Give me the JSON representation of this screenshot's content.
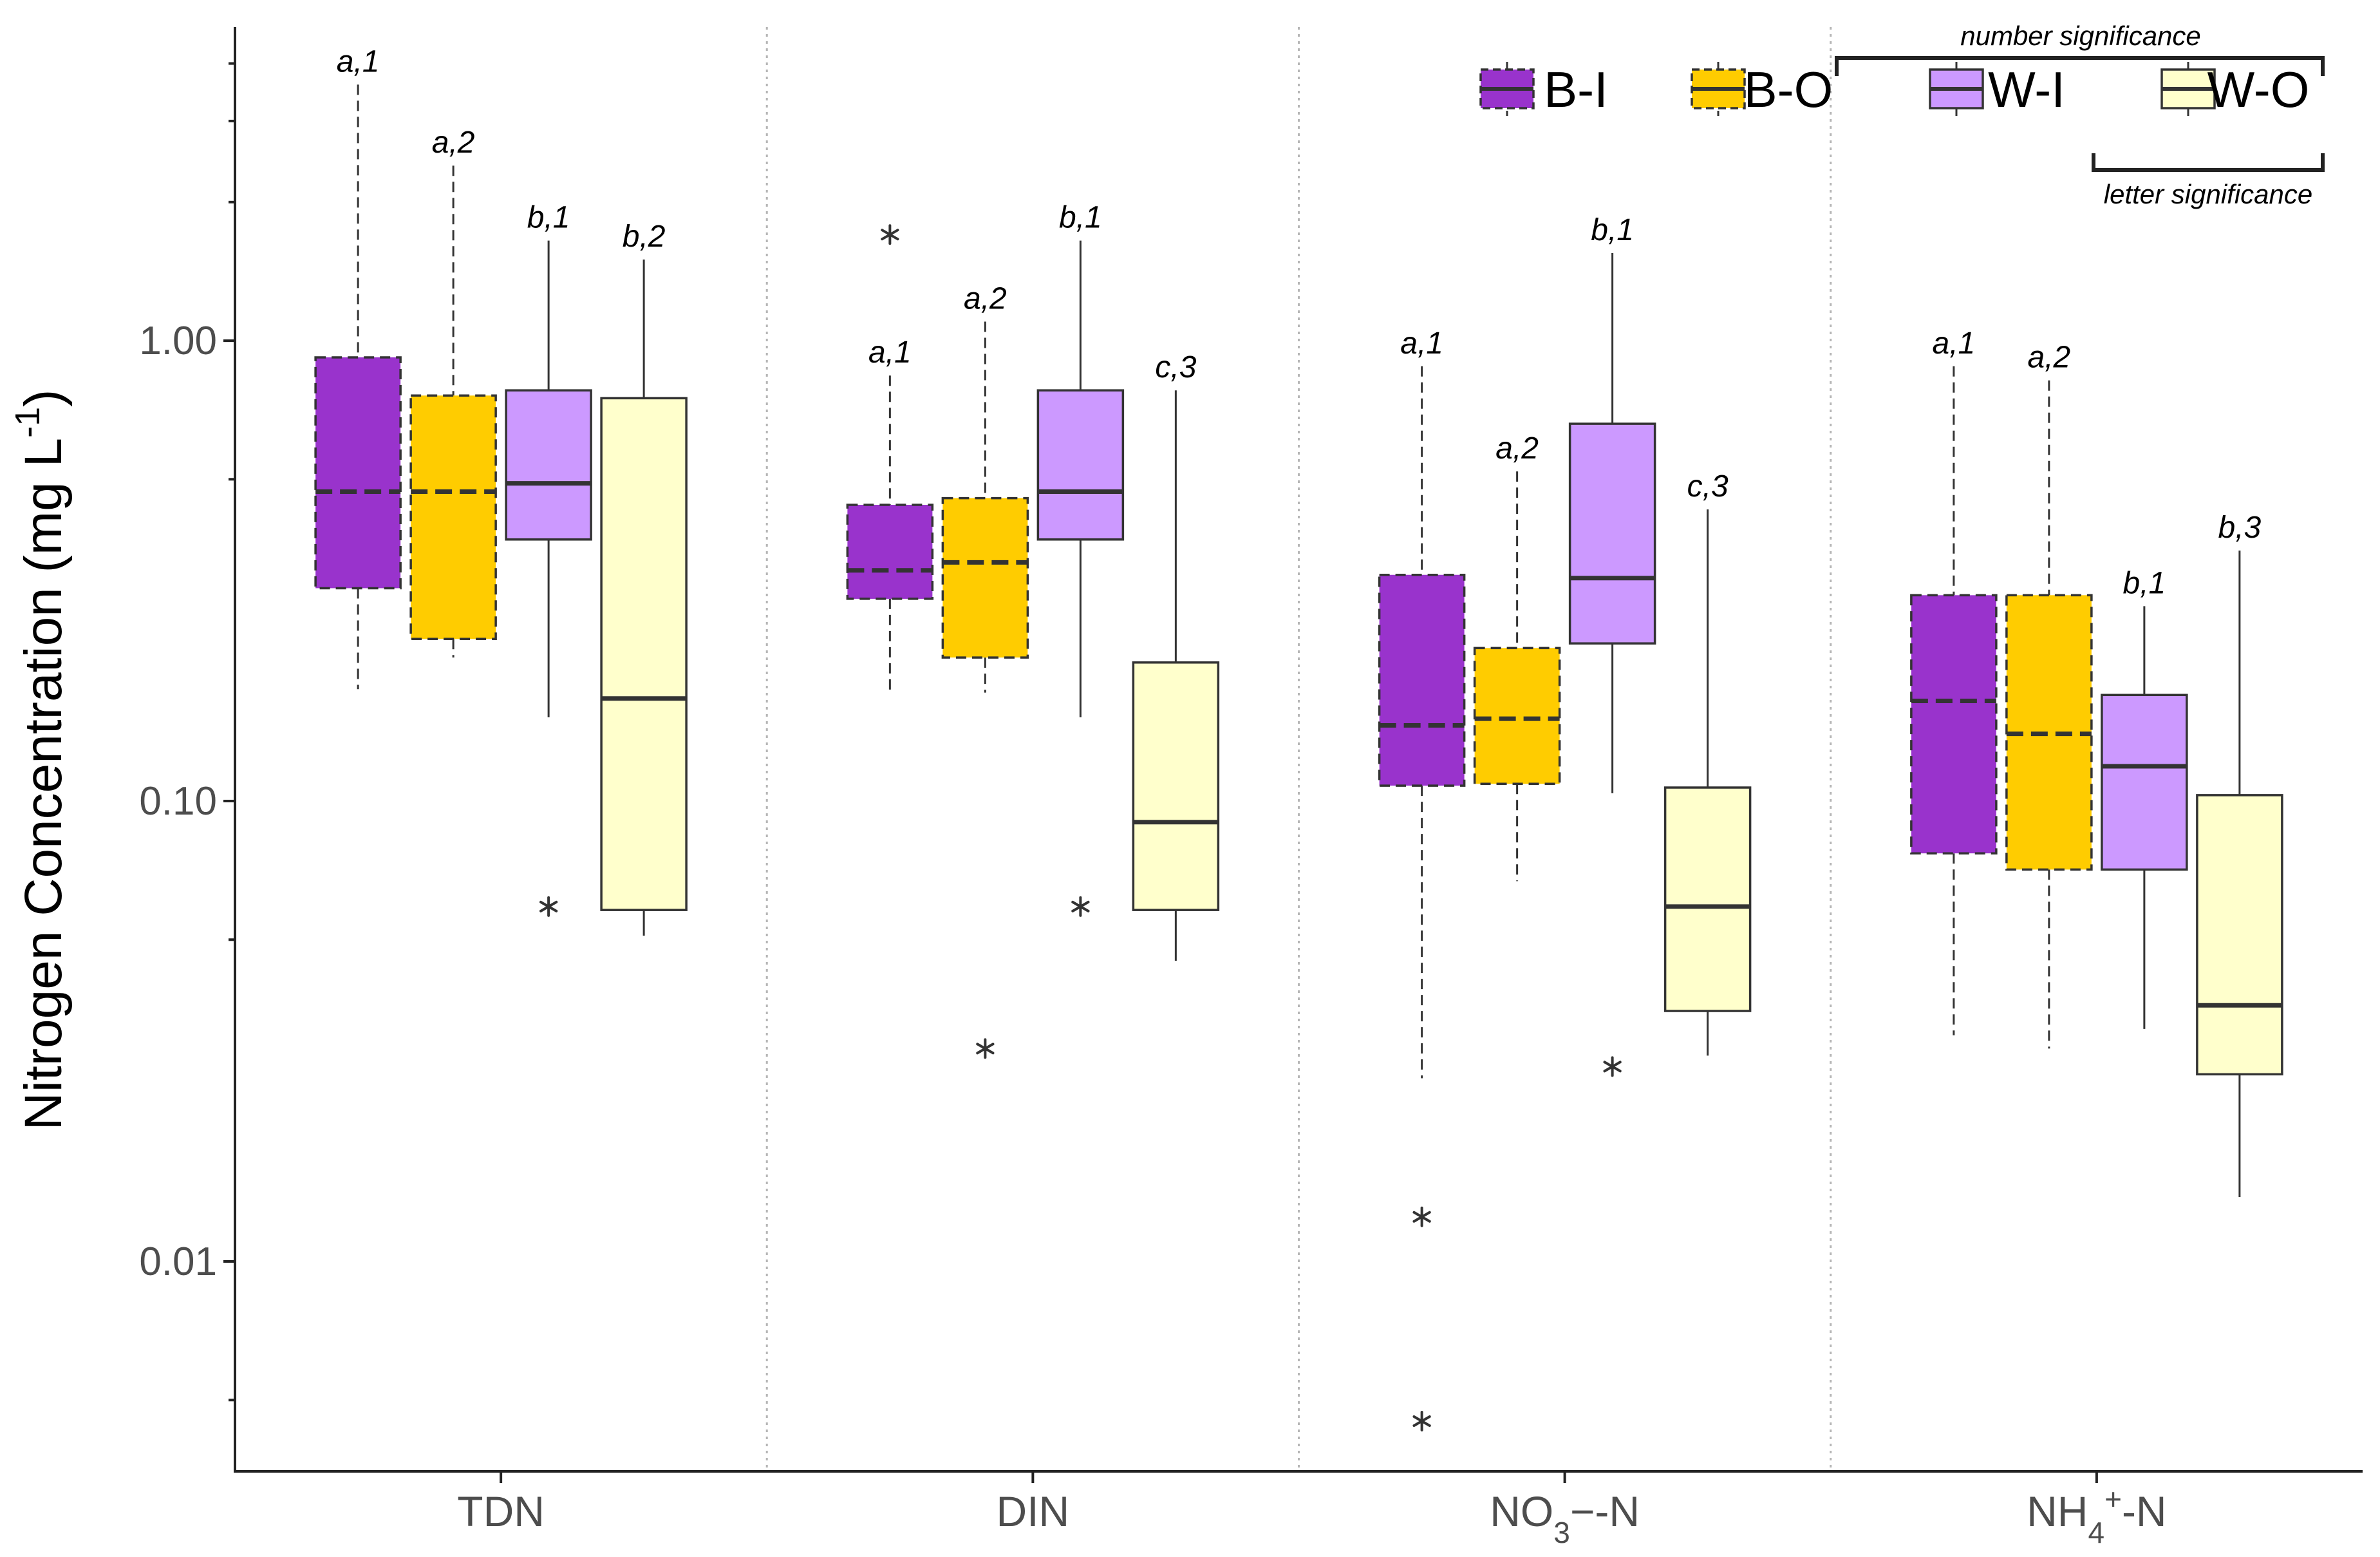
{
  "chart_data": {
    "type": "box",
    "title": "",
    "xlabel": "",
    "ylabel": {
      "main": "Nitrogen Concentration (mg L",
      "sup": "-1",
      "close": ")"
    },
    "yscale": "log10",
    "ylim": [
      0.0035,
      4.8
    ],
    "yticks": [
      {
        "value": 0.01,
        "label": "0.01"
      },
      {
        "value": 0.1,
        "label": "0.10"
      },
      {
        "value": 1.0,
        "label": "1.00"
      }
    ],
    "minor_ticks": [
      0.005,
      0.05,
      0.5,
      2,
      3,
      4
    ],
    "categories": [
      {
        "id": "TDN",
        "parts": [
          {
            "t": "TDN"
          }
        ]
      },
      {
        "id": "DIN",
        "parts": [
          {
            "t": "DIN"
          }
        ]
      },
      {
        "id": "NO3-N",
        "parts": [
          {
            "t": "NO"
          },
          {
            "t": "3",
            "s": "sub"
          },
          {
            "t": "−-N"
          }
        ]
      },
      {
        "id": "NH4+-N",
        "parts": [
          {
            "t": "NH"
          },
          {
            "t": "4",
            "s": "sub"
          },
          {
            "t": "+",
            "s": "sup"
          },
          {
            "t": "-N"
          }
        ]
      }
    ],
    "groups": [
      {
        "name": "B-I",
        "color": "#9933CC",
        "dashed": true
      },
      {
        "name": "B-O",
        "color": "#FFCC00",
        "dashed": true
      },
      {
        "name": "W-I",
        "color": "#CC99FF",
        "dashed": false
      },
      {
        "name": "W-O",
        "color": "#FFFFCC",
        "dashed": false
      }
    ],
    "boxes": [
      {
        "category": "TDN",
        "group": "B-I",
        "whisker_low": 0.175,
        "q1": 0.29,
        "median": 0.47,
        "q3": 0.92,
        "whisker_high": 3.6,
        "outliers": [],
        "sig": "a,1"
      },
      {
        "category": "TDN",
        "group": "B-O",
        "whisker_low": 0.205,
        "q1": 0.225,
        "median": 0.47,
        "q3": 0.76,
        "whisker_high": 2.4,
        "outliers": [],
        "sig": "a,2"
      },
      {
        "category": "TDN",
        "group": "W-I",
        "whisker_low": 0.152,
        "q1": 0.37,
        "median": 0.49,
        "q3": 0.78,
        "whisker_high": 1.65,
        "outliers": [
          0.059
        ],
        "sig": "b,1"
      },
      {
        "category": "TDN",
        "group": "W-O",
        "whisker_low": 0.051,
        "q1": 0.058,
        "median": 0.167,
        "q3": 0.75,
        "whisker_high": 1.5,
        "outliers": [],
        "sig": "b,2"
      },
      {
        "category": "DIN",
        "group": "B-I",
        "whisker_low": 0.17,
        "q1": 0.275,
        "median": 0.317,
        "q3": 0.44,
        "whisker_high": 0.84,
        "outliers": [
          1.7
        ],
        "sig": "a,1"
      },
      {
        "category": "DIN",
        "group": "B-O",
        "whisker_low": 0.172,
        "q1": 0.205,
        "median": 0.33,
        "q3": 0.455,
        "whisker_high": 1.1,
        "outliers": [
          0.029
        ],
        "sig": "a,2"
      },
      {
        "category": "DIN",
        "group": "W-I",
        "whisker_low": 0.152,
        "q1": 0.37,
        "median": 0.47,
        "q3": 0.78,
        "whisker_high": 1.65,
        "outliers": [
          0.059
        ],
        "sig": "b,1"
      },
      {
        "category": "DIN",
        "group": "W-O",
        "whisker_low": 0.045,
        "q1": 0.058,
        "median": 0.09,
        "q3": 0.2,
        "whisker_high": 0.78,
        "outliers": [],
        "sig": "c,3"
      },
      {
        "category": "NO3-N",
        "group": "B-I",
        "whisker_low": 0.025,
        "q1": 0.108,
        "median": 0.146,
        "q3": 0.31,
        "whisker_high": 0.88,
        "outliers": [
          0.0125,
          0.0045
        ],
        "sig": "a,1"
      },
      {
        "category": "NO3-N",
        "group": "B-O",
        "whisker_low": 0.067,
        "q1": 0.109,
        "median": 0.151,
        "q3": 0.215,
        "whisker_high": 0.52,
        "outliers": [],
        "sig": "a,2"
      },
      {
        "category": "NO3-N",
        "group": "W-I",
        "whisker_low": 0.104,
        "q1": 0.22,
        "median": 0.305,
        "q3": 0.66,
        "whisker_high": 1.55,
        "outliers": [
          0.0265
        ],
        "sig": "b,1"
      },
      {
        "category": "NO3-N",
        "group": "W-O",
        "whisker_low": 0.028,
        "q1": 0.035,
        "median": 0.059,
        "q3": 0.107,
        "whisker_high": 0.43,
        "outliers": [],
        "sig": "c,3"
      },
      {
        "category": "NH4+-N",
        "group": "B-I",
        "whisker_low": 0.031,
        "q1": 0.077,
        "median": 0.165,
        "q3": 0.28,
        "whisker_high": 0.88,
        "outliers": [],
        "sig": "a,1"
      },
      {
        "category": "NH4+-N",
        "group": "B-O",
        "whisker_low": 0.029,
        "q1": 0.071,
        "median": 0.14,
        "q3": 0.28,
        "whisker_high": 0.82,
        "outliers": [],
        "sig": "a,2"
      },
      {
        "category": "NH4+-N",
        "group": "W-I",
        "whisker_low": 0.032,
        "q1": 0.071,
        "median": 0.119,
        "q3": 0.17,
        "whisker_high": 0.265,
        "outliers": [],
        "sig": "b,1"
      },
      {
        "category": "NH4+-N",
        "group": "W-O",
        "whisker_low": 0.0138,
        "q1": 0.0255,
        "median": 0.036,
        "q3": 0.103,
        "whisker_high": 0.35,
        "outliers": [],
        "sig": "b,3"
      }
    ],
    "legend": {
      "position": "top-right",
      "number_significance_label": "number significance",
      "letter_significance_label": "letter significance"
    }
  }
}
